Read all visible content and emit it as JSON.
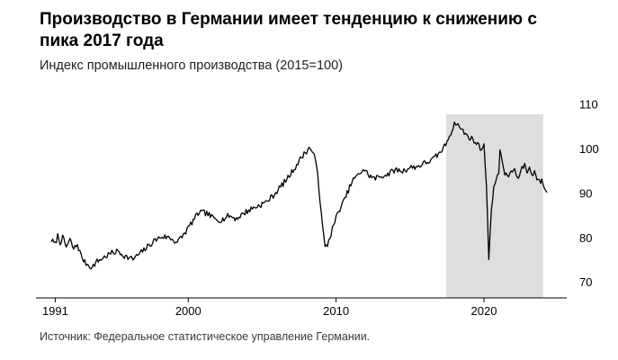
{
  "header": {
    "title": "Производство в Германии имеет тенденцию к снижению с\nпика 2017 года",
    "subtitle": "Индекс промышленного производства (2015=100)"
  },
  "footer": {
    "source": "Источник: Федеральное статистическое управление Германии."
  },
  "chart_data": {
    "type": "line",
    "series_name": "Индекс промышленного производства Германии (2015=100)",
    "title": "Производство в Германии имеет тенденцию к снижению с пика 2017 года",
    "xlabel": "",
    "ylabel": "",
    "x_ticks": [
      1991,
      2000,
      2010,
      2020
    ],
    "y_ticks": [
      110,
      100,
      90,
      80,
      70
    ],
    "xlim": [
      1989.7,
      2025.6
    ],
    "ylim": [
      66.5,
      111
    ],
    "grid": false,
    "legend": "none",
    "line_color": "#000000",
    "axis_color": "#000000",
    "shaded_region": {
      "from": 2017.45,
      "to": 2024.0,
      "color": "#dedede",
      "meaning": "период снижения с пика 2017 года"
    },
    "noise_amplitude": 0.65,
    "noise_seed": 7,
    "points": [
      [
        1990.75,
        79.5
      ],
      [
        1991.0,
        78.5
      ],
      [
        1991.17,
        80.5
      ],
      [
        1991.33,
        79.0
      ],
      [
        1991.5,
        80.0
      ],
      [
        1991.75,
        78.0
      ],
      [
        1992.0,
        79.5
      ],
      [
        1992.25,
        77.5
      ],
      [
        1992.5,
        78.5
      ],
      [
        1992.75,
        76.0
      ],
      [
        1993.0,
        74.5
      ],
      [
        1993.5,
        73.3
      ],
      [
        1993.75,
        74.5
      ],
      [
        1994.25,
        75.5
      ],
      [
        1994.75,
        76.5
      ],
      [
        1995.25,
        77.0
      ],
      [
        1995.75,
        75.8
      ],
      [
        1996.25,
        75.2
      ],
      [
        1996.75,
        76.5
      ],
      [
        1997.25,
        78.0
      ],
      [
        1997.75,
        79.5
      ],
      [
        1998.25,
        80.3
      ],
      [
        1998.75,
        80.0
      ],
      [
        1999.25,
        79.0
      ],
      [
        1999.75,
        81.0
      ],
      [
        2000.25,
        83.5
      ],
      [
        2000.75,
        85.8
      ],
      [
        2001.25,
        85.5
      ],
      [
        2001.75,
        84.3
      ],
      [
        2002.25,
        84.0
      ],
      [
        2002.75,
        85.0
      ],
      [
        2003.25,
        84.3
      ],
      [
        2003.75,
        85.5
      ],
      [
        2004.25,
        86.5
      ],
      [
        2004.75,
        87.2
      ],
      [
        2005.25,
        88.0
      ],
      [
        2005.75,
        89.5
      ],
      [
        2006.25,
        91.5
      ],
      [
        2006.75,
        93.5
      ],
      [
        2007.25,
        96.0
      ],
      [
        2007.75,
        98.5
      ],
      [
        2008.0,
        99.5
      ],
      [
        2008.25,
        100.3
      ],
      [
        2008.5,
        98.5
      ],
      [
        2008.75,
        95.0
      ],
      [
        2009.0,
        85.0
      ],
      [
        2009.25,
        77.8
      ],
      [
        2009.42,
        78.5
      ],
      [
        2009.75,
        82.0
      ],
      [
        2010.0,
        84.5
      ],
      [
        2010.25,
        86.5
      ],
      [
        2010.5,
        88.0
      ],
      [
        2010.75,
        90.0
      ],
      [
        2011.0,
        92.0
      ],
      [
        2011.25,
        93.5
      ],
      [
        2011.5,
        94.0
      ],
      [
        2011.83,
        95.5
      ],
      [
        2012.25,
        94.0
      ],
      [
        2012.58,
        93.3
      ],
      [
        2013.0,
        93.8
      ],
      [
        2013.5,
        94.3
      ],
      [
        2014.0,
        95.3
      ],
      [
        2014.5,
        95.0
      ],
      [
        2015.0,
        95.8
      ],
      [
        2015.5,
        96.0
      ],
      [
        2016.0,
        96.8
      ],
      [
        2016.5,
        97.5
      ],
      [
        2017.0,
        99.0
      ],
      [
        2017.33,
        100.5
      ],
      [
        2017.67,
        103.0
      ],
      [
        2017.92,
        104.8
      ],
      [
        2018.08,
        106.0
      ],
      [
        2018.33,
        105.0
      ],
      [
        2018.58,
        104.0
      ],
      [
        2018.83,
        103.0
      ],
      [
        2019.08,
        102.5
      ],
      [
        2019.33,
        101.8
      ],
      [
        2019.58,
        101.0
      ],
      [
        2019.83,
        100.0
      ],
      [
        2019.99,
        101.0
      ],
      [
        2020.08,
        97.0
      ],
      [
        2020.17,
        92.0
      ],
      [
        2020.33,
        75.5
      ],
      [
        2020.42,
        81.0
      ],
      [
        2020.5,
        86.0
      ],
      [
        2020.67,
        91.0
      ],
      [
        2020.83,
        93.5
      ],
      [
        2021.0,
        95.0
      ],
      [
        2021.08,
        99.3
      ],
      [
        2021.25,
        97.0
      ],
      [
        2021.42,
        94.5
      ],
      [
        2021.58,
        93.5
      ],
      [
        2021.75,
        94.5
      ],
      [
        2021.92,
        95.0
      ],
      [
        2022.08,
        95.5
      ],
      [
        2022.25,
        93.0
      ],
      [
        2022.42,
        94.5
      ],
      [
        2022.58,
        95.5
      ],
      [
        2022.75,
        96.5
      ],
      [
        2022.92,
        95.0
      ],
      [
        2023.08,
        95.5
      ],
      [
        2023.25,
        94.5
      ],
      [
        2023.42,
        94.8
      ],
      [
        2023.58,
        93.5
      ],
      [
        2023.75,
        92.5
      ],
      [
        2023.92,
        92.8
      ],
      [
        2024.08,
        91.5
      ],
      [
        2024.25,
        90.2
      ],
      [
        2024.33,
        90.0
      ]
    ]
  }
}
